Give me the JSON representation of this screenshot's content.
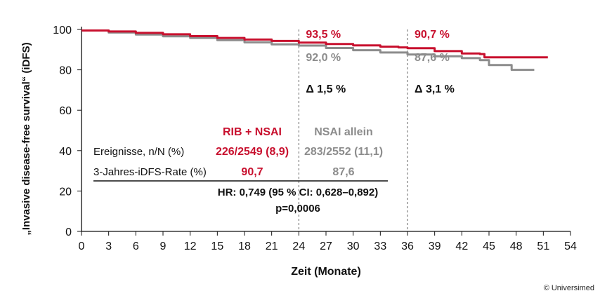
{
  "chart_data": {
    "type": "line",
    "xlabel": "Zeit (Monate)",
    "ylabel": "„Invasive disease-free survival“ (iDFS)",
    "xlim": [
      0,
      54
    ],
    "ylim": [
      0,
      100
    ],
    "x_ticks": [
      "0",
      "3",
      "6",
      "9",
      "12",
      "15",
      "18",
      "21",
      "24",
      "27",
      "30",
      "33",
      "36",
      "39",
      "42",
      "45",
      "48",
      "51",
      "54"
    ],
    "y_ticks": [
      "0",
      "20",
      "40",
      "60",
      "80",
      "100"
    ],
    "grid": false,
    "series": [
      {
        "name": "RIB + NSAI",
        "color": "#c8102e",
        "x": [
          0,
          2,
          3,
          6,
          9,
          12,
          15,
          18,
          21,
          24,
          27,
          30,
          33,
          35,
          36,
          39,
          42,
          44,
          44.5,
          46,
          48,
          50,
          51.5
        ],
        "y": [
          99.5,
          99.5,
          99.0,
          98.3,
          97.6,
          96.7,
          95.8,
          95.0,
          94.3,
          93.5,
          92.8,
          92.1,
          91.5,
          91.1,
          90.7,
          89.3,
          88.1,
          87.8,
          86.2,
          86.2,
          86.2,
          86.2,
          86.2
        ]
      },
      {
        "name": "NSAI allein",
        "color": "#8c8c8c",
        "x": [
          0,
          3,
          6,
          9,
          12,
          15,
          18,
          21,
          24,
          27,
          30,
          33,
          36,
          39,
          42,
          44,
          45,
          47,
          47.5,
          50
        ],
        "y": [
          99.5,
          98.5,
          97.5,
          96.6,
          95.8,
          94.7,
          93.6,
          92.6,
          92.0,
          90.8,
          89.7,
          88.6,
          87.6,
          86.7,
          85.8,
          84.8,
          82.4,
          82.4,
          80.0,
          80.0
        ]
      }
    ],
    "annotations": [
      {
        "x": 24,
        "rib": "93,5 %",
        "nsai": "92,0 %",
        "delta": "Δ 1,5 %"
      },
      {
        "x": 36,
        "rib": "90,7 %",
        "nsai": "87,6 %",
        "delta": "Δ 3,1 %"
      }
    ],
    "table": {
      "header_rib": "RIB + NSAI",
      "header_nsai": "NSAI allein",
      "rows": [
        {
          "label": "Ereignisse, n/N (%)",
          "rib": "226/2549 (8,9)",
          "nsai": "283/2552 (11,1)"
        },
        {
          "label": "3-Jahres-iDFS-Rate (%)",
          "rib": "90,7",
          "nsai": "87,6"
        }
      ],
      "hr": "HR: 0,749 (95 % CI: 0,628–0,892)",
      "p": "p=0,0006"
    }
  },
  "copyright": "© Universimed"
}
